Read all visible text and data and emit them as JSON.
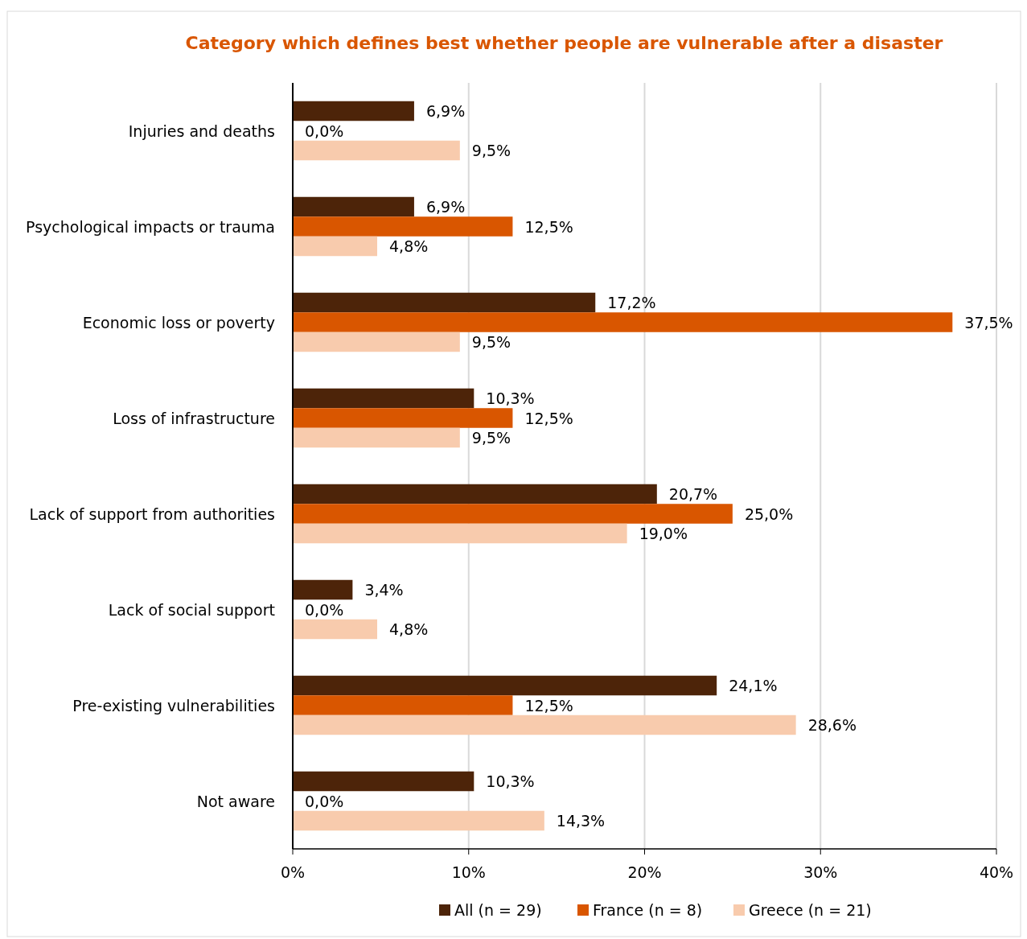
{
  "chart_data": {
    "type": "bar",
    "orientation": "horizontal",
    "title": "Category which defines best whether people are vulnerable after a disaster",
    "categories": [
      "Injuries and deaths",
      "Psychological impacts or trauma",
      "Economic loss or poverty",
      "Loss of infrastructure",
      "Lack of support from authorities",
      "Lack of social support",
      "Pre-existing vulnerabilities",
      "Not aware"
    ],
    "series": [
      {
        "name": "All (n = 29)",
        "color": "#4d2409",
        "values": [
          6.9,
          6.9,
          17.2,
          10.3,
          20.7,
          3.4,
          24.1,
          10.3
        ],
        "value_labels": [
          "6,9%",
          "6,9%",
          "17,2%",
          "10,3%",
          "20,7%",
          "3,4%",
          "24,1%",
          "10,3%"
        ]
      },
      {
        "name": "France (n = 8)",
        "color": "#d95600",
        "values": [
          0,
          12.5,
          37.5,
          12.5,
          25,
          0,
          12.5,
          0
        ],
        "value_labels": [
          "0,0%",
          "12,5%",
          "37,5%",
          "12,5%",
          "25,0%",
          "0,0%",
          "12,5%",
          "0,0%"
        ]
      },
      {
        "name": "Greece (n = 21)",
        "color": "#f8cbad",
        "values": [
          9.5,
          4.8,
          9.5,
          9.5,
          19,
          4.8,
          28.6,
          14.3
        ],
        "value_labels": [
          "9,5%",
          "4,8%",
          "9,5%",
          "9,5%",
          "19,0%",
          "4,8%",
          "28,6%",
          "14,3%"
        ]
      }
    ],
    "xlim": [
      0,
      40
    ],
    "xticks": [
      {
        "value": 0,
        "label": "0%"
      },
      {
        "value": 10,
        "label": "10%"
      },
      {
        "value": 20,
        "label": "20%"
      },
      {
        "value": 30,
        "label": "30%"
      },
      {
        "value": 40,
        "label": "40%"
      }
    ],
    "grid": "x",
    "legend": "bottom"
  }
}
